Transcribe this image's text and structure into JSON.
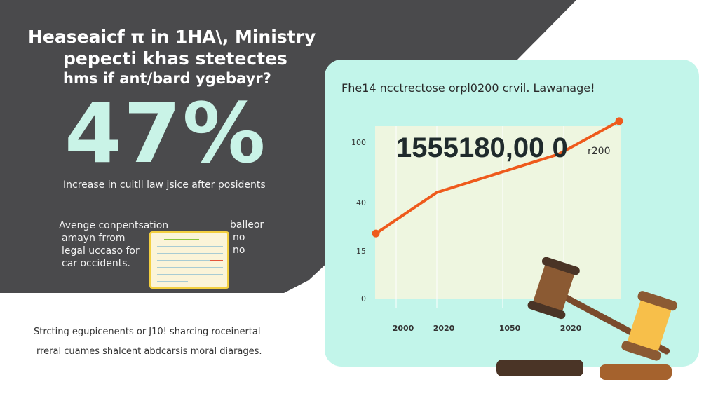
{
  "headline": [
    "Heaseaicf π in 1HA\\, Ministry",
    "pepecti khas stetectes",
    "hms if ant/bard ygebayr?"
  ],
  "big_stat": "47%",
  "subtitle": "Increase in cuitll law jsice after posidents",
  "average_text": [
    "Avenge conpentsation",
    "amayn frrom",
    "legal uccaso for",
    "car occidents."
  ],
  "note_labels": [
    "balleor",
    "no",
    "no"
  ],
  "footer": [
    "Strcting egupicenents or J10! sharcing roceinertal",
    "rreral cuames shalcent abdcarsis moral diarages."
  ],
  "colors": {
    "dark_bg": "#4a4a4c",
    "panel": "#c2f5ea",
    "line": "#ee5a1c",
    "stat": "#c9f3e7",
    "plot_fill": "#eef6e0"
  },
  "chart_data": {
    "type": "line",
    "title": "Fhe14 ncctrectose orpl0200 crvil. Lawanage!",
    "highlight_value": "1555180,00 0",
    "highlight_suffix": "r200",
    "y_ticks": [
      0,
      15,
      40,
      100
    ],
    "x_tick_labels": [
      "2000",
      "2020",
      "1050",
      "2020"
    ],
    "series": [
      {
        "values": [
          24,
          50,
          69,
          88,
          121
        ]
      }
    ],
    "grid": true
  }
}
